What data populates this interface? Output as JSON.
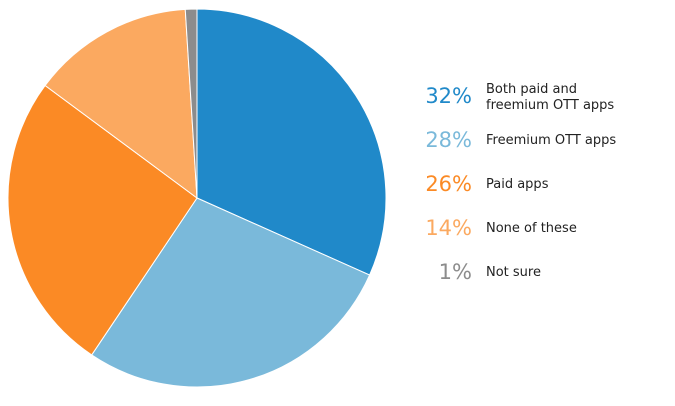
{
  "chart_data": {
    "type": "pie",
    "title": "",
    "start_angle_deg": 0,
    "direction": "clockwise",
    "legend_position": "right",
    "slices": [
      {
        "label": "Both paid and freemium OTT apps",
        "label_lines": [
          "Both paid and",
          "freemium OTT apps"
        ],
        "value": 32,
        "value_label": "32%",
        "color": "#2089c9"
      },
      {
        "label": "Freemium OTT apps",
        "label_lines": [
          "Freemium OTT apps"
        ],
        "value": 28,
        "value_label": "28%",
        "color": "#7ab9da"
      },
      {
        "label": "Paid apps",
        "label_lines": [
          "Paid apps"
        ],
        "value": 26,
        "value_label": "26%",
        "color": "#fb8a25"
      },
      {
        "label": "None of these",
        "label_lines": [
          "None of these"
        ],
        "value": 14,
        "value_label": "14%",
        "color": "#fba960"
      },
      {
        "label": "Not sure",
        "label_lines": [
          "Not sure"
        ],
        "value": 1,
        "value_label": "1%",
        "color": "#8c8c8c"
      }
    ]
  }
}
